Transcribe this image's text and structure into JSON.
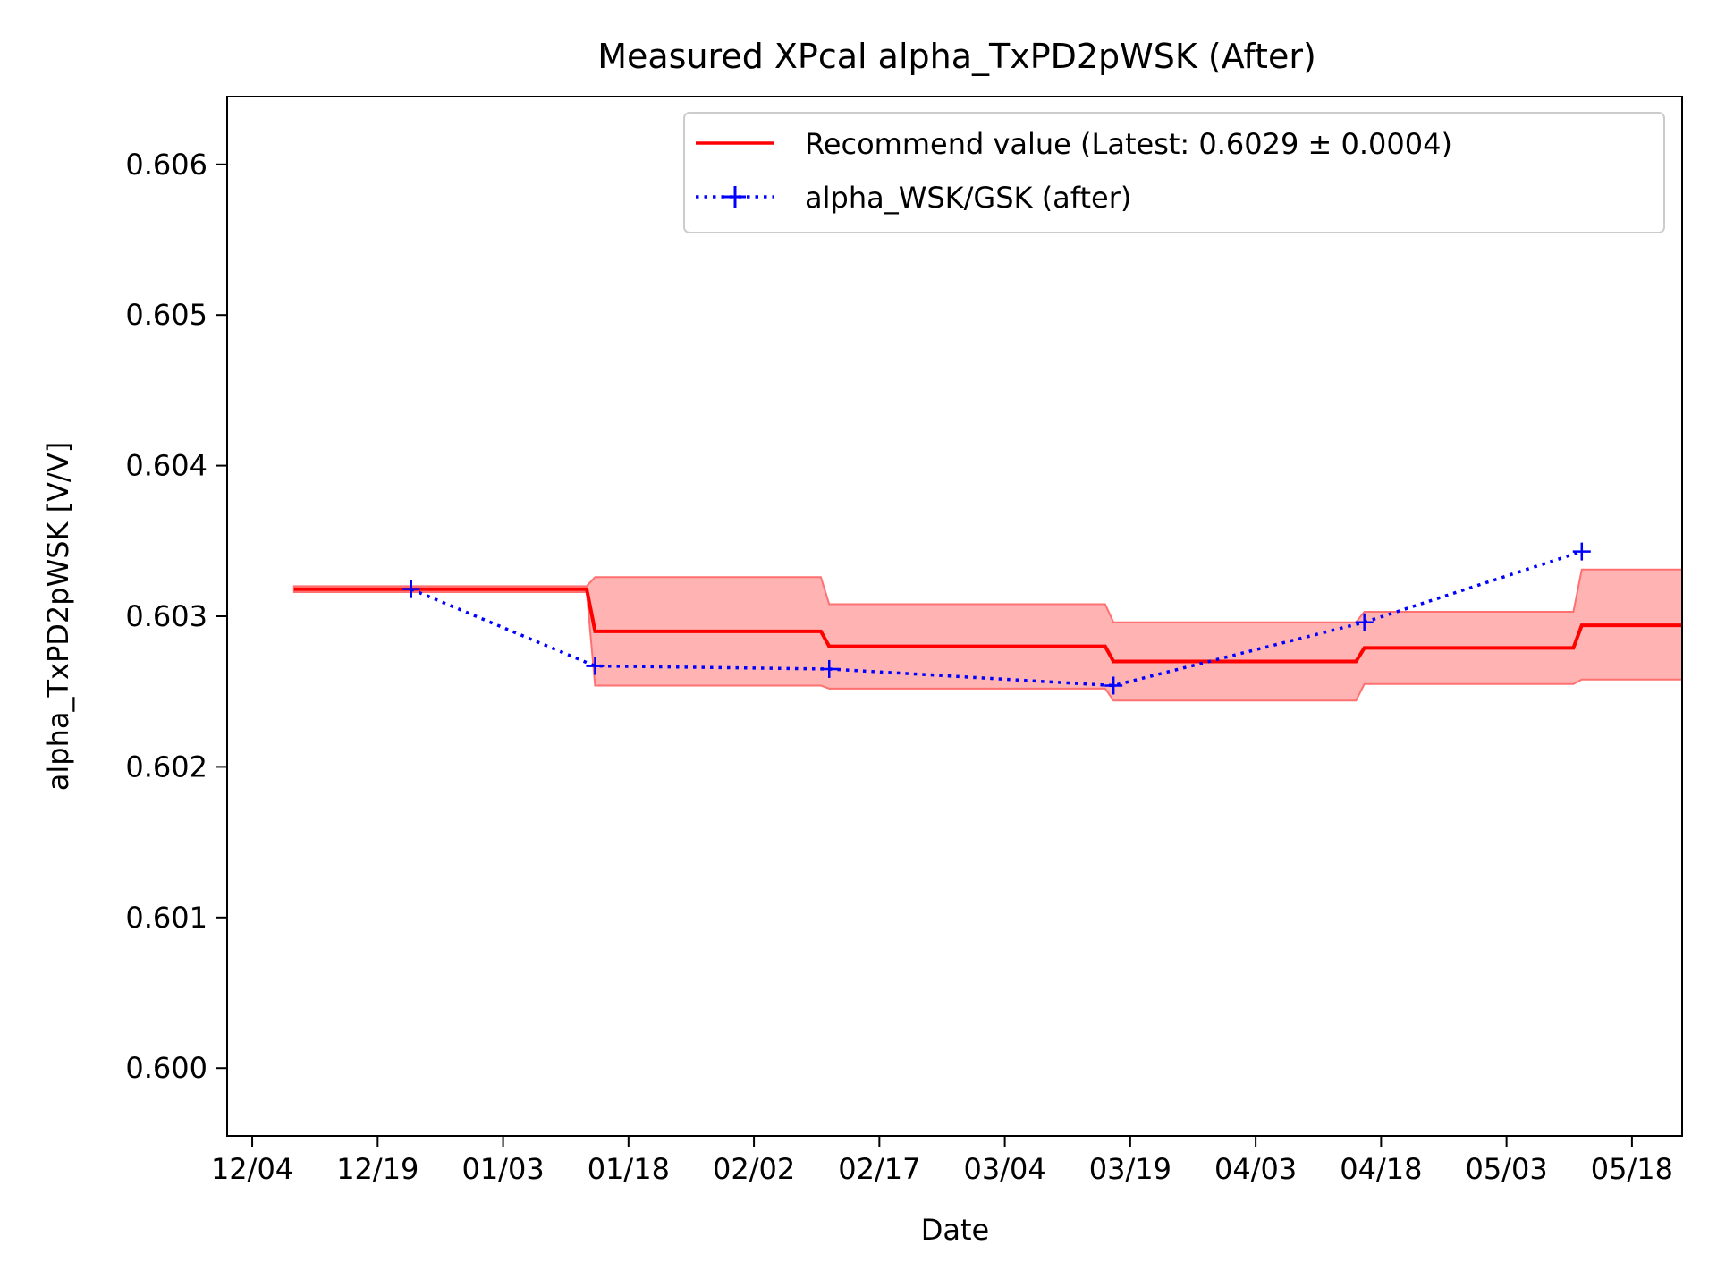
{
  "chart_data": {
    "type": "line",
    "title": "Measured XPcal alpha_TxPD2pWSK (After)",
    "xlabel": "Date",
    "ylabel": "alpha_TxPD2pWSK [V/V]",
    "x_ticks": [
      "12/04",
      "12/19",
      "01/03",
      "01/18",
      "02/02",
      "02/17",
      "03/04",
      "03/19",
      "04/03",
      "04/18",
      "05/03",
      "05/18"
    ],
    "x_tick_dates": [
      "2022-12-04",
      "2022-12-19",
      "2023-01-03",
      "2023-01-18",
      "2023-02-02",
      "2023-02-17",
      "2023-03-04",
      "2023-03-19",
      "2023-04-03",
      "2023-04-18",
      "2023-05-03",
      "2023-05-18"
    ],
    "x_range": [
      "2022-12-01",
      "2023-05-24"
    ],
    "ylim": [
      0.59955,
      0.60645
    ],
    "y_ticks": [
      "0.600",
      "0.601",
      "0.602",
      "0.603",
      "0.604",
      "0.605",
      "0.606"
    ],
    "grid": false,
    "legend": "top-right",
    "series": [
      {
        "name": "Recommend value (Latest: 0.6029 ± 0.0004)",
        "style": "step-line-with-band",
        "color": "#ff0000",
        "band_color": "#ff9a9a",
        "points": [
          {
            "x": "2022-12-09",
            "y": 0.60318,
            "lo": 0.60316,
            "hi": 0.6032
          },
          {
            "x": "2023-01-13",
            "y": 0.60318,
            "lo": 0.60316,
            "hi": 0.6032
          },
          {
            "x": "2023-01-14",
            "y": 0.6029,
            "lo": 0.60254,
            "hi": 0.60326
          },
          {
            "x": "2023-02-10",
            "y": 0.6029,
            "lo": 0.60254,
            "hi": 0.60326
          },
          {
            "x": "2023-02-11",
            "y": 0.6028,
            "lo": 0.60252,
            "hi": 0.60308
          },
          {
            "x": "2023-03-16",
            "y": 0.6028,
            "lo": 0.60252,
            "hi": 0.60308
          },
          {
            "x": "2023-03-17",
            "y": 0.6027,
            "lo": 0.60244,
            "hi": 0.60296
          },
          {
            "x": "2023-04-15",
            "y": 0.6027,
            "lo": 0.60244,
            "hi": 0.60296
          },
          {
            "x": "2023-04-16",
            "y": 0.60279,
            "lo": 0.60255,
            "hi": 0.60303
          },
          {
            "x": "2023-05-11",
            "y": 0.60279,
            "lo": 0.60255,
            "hi": 0.60303
          },
          {
            "x": "2023-05-12",
            "y": 0.60294,
            "lo": 0.60258,
            "hi": 0.60331
          },
          {
            "x": "2023-05-24",
            "y": 0.60294,
            "lo": 0.60258,
            "hi": 0.60331
          }
        ]
      },
      {
        "name": "alpha_WSK/GSK (after)",
        "style": "dotted-with-plus-markers",
        "color": "#0000ff",
        "points": [
          {
            "x": "2022-12-23",
            "y": 0.60318
          },
          {
            "x": "2023-01-14",
            "y": 0.60267
          },
          {
            "x": "2023-02-11",
            "y": 0.60265
          },
          {
            "x": "2023-03-17",
            "y": 0.60254
          },
          {
            "x": "2023-04-16",
            "y": 0.60296
          },
          {
            "x": "2023-05-12",
            "y": 0.60343
          }
        ]
      }
    ]
  }
}
